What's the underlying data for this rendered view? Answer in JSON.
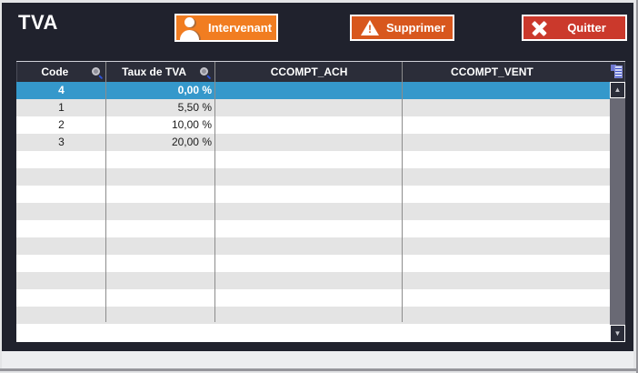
{
  "window": {
    "title": "TVA"
  },
  "toolbar": {
    "intervenant_label": "Intervenant",
    "supprimer_label": "Supprimer",
    "quitter_label": "Quitter"
  },
  "table": {
    "columns": [
      {
        "label": "Code",
        "searchable": true
      },
      {
        "label": "Taux de TVA",
        "searchable": true
      },
      {
        "label": "CCOMPT_ACH",
        "searchable": false
      },
      {
        "label": "CCOMPT_VENT",
        "searchable": false
      }
    ],
    "rows": [
      {
        "code": "4",
        "taux_de_tva": "0,00 %",
        "ccompt_ach": "",
        "ccompt_vent": "",
        "selected": true
      },
      {
        "code": "1",
        "taux_de_tva": "5,50 %",
        "ccompt_ach": "",
        "ccompt_vent": "",
        "selected": false
      },
      {
        "code": "2",
        "taux_de_tva": "10,00 %",
        "ccompt_ach": "",
        "ccompt_vent": "",
        "selected": false
      },
      {
        "code": "3",
        "taux_de_tva": "20,00 %",
        "ccompt_ach": "",
        "ccompt_vent": "",
        "selected": false
      }
    ],
    "empty_row_count": 11
  },
  "icons": {
    "intervenant_button": "person-icon",
    "supprimer_button": "warning-icon",
    "quitter_button": "close-icon",
    "column_search": "magnifier-icon",
    "table_corner": "copy-table-icon",
    "scroll_up_glyph": "▲",
    "scroll_down_glyph": "▼"
  },
  "colors": {
    "form_background": "#20222d",
    "header_background": "#2b2d39",
    "selected_row": "#3598cb",
    "row_stripe": "#e4e4e4",
    "button_orange": "#f17d21",
    "button_orange_dark": "#d8571d",
    "button_red": "#cb392c"
  }
}
